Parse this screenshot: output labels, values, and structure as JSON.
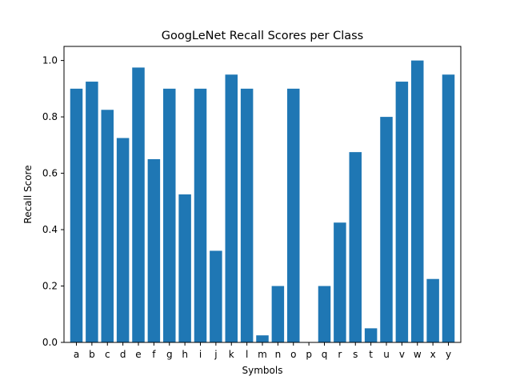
{
  "chart_data": {
    "type": "bar",
    "title": "GoogLeNet Recall Scores per Class",
    "xlabel": "Symbols",
    "ylabel": "Recall Score",
    "categories": [
      "a",
      "b",
      "c",
      "d",
      "e",
      "f",
      "g",
      "h",
      "i",
      "j",
      "k",
      "l",
      "m",
      "n",
      "o",
      "p",
      "q",
      "r",
      "s",
      "t",
      "u",
      "v",
      "w",
      "x",
      "y"
    ],
    "values": [
      0.9,
      0.925,
      0.825,
      0.725,
      0.975,
      0.65,
      0.9,
      0.525,
      0.9,
      0.325,
      0.95,
      0.9,
      0.025,
      0.2,
      0.9,
      0.0,
      0.2,
      0.425,
      0.675,
      0.05,
      0.8,
      0.925,
      1.0,
      0.225,
      0.95
    ],
    "ylim": [
      0,
      1.05
    ],
    "yticks": [
      "0.0",
      "0.2",
      "0.4",
      "0.6",
      "0.8",
      "1.0"
    ],
    "bar_color": "#1f77b4",
    "grid": false,
    "legend": "none"
  }
}
